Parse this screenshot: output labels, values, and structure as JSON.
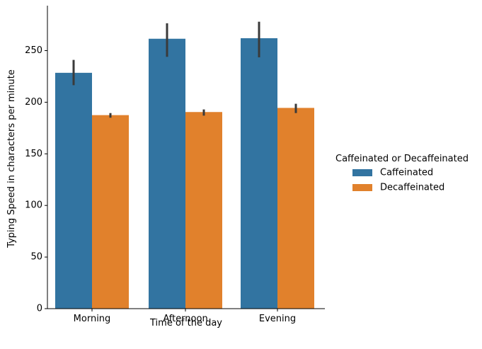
{
  "chart_data": {
    "type": "bar",
    "title": "",
    "xlabel": "Time of the day",
    "ylabel": "Typing Speed in characters per minute",
    "categories": [
      "Morning",
      "Afternoon",
      "Evening"
    ],
    "ylim": [
      0,
      292
    ],
    "yticks": [
      0,
      50,
      100,
      150,
      200,
      250
    ],
    "legend_title": "Caffeinated or Decaffeinated",
    "legend_position": "right",
    "series": [
      {
        "name": "Caffeinated",
        "color": "#3274a1",
        "values": [
          228.5,
          261.5,
          262.0
        ],
        "error_low": [
          216.5,
          244.0,
          243.5
        ],
        "error_high": [
          241.0,
          276.5,
          278.0
        ]
      },
      {
        "name": "Decaffeinated",
        "color": "#e1812c",
        "values": [
          187.5,
          190.5,
          194.5
        ],
        "error_low": [
          185.0,
          187.0,
          189.5
        ],
        "error_high": [
          189.5,
          193.0,
          198.5
        ]
      }
    ],
    "errorbar_color": "#3a3a3a"
  }
}
